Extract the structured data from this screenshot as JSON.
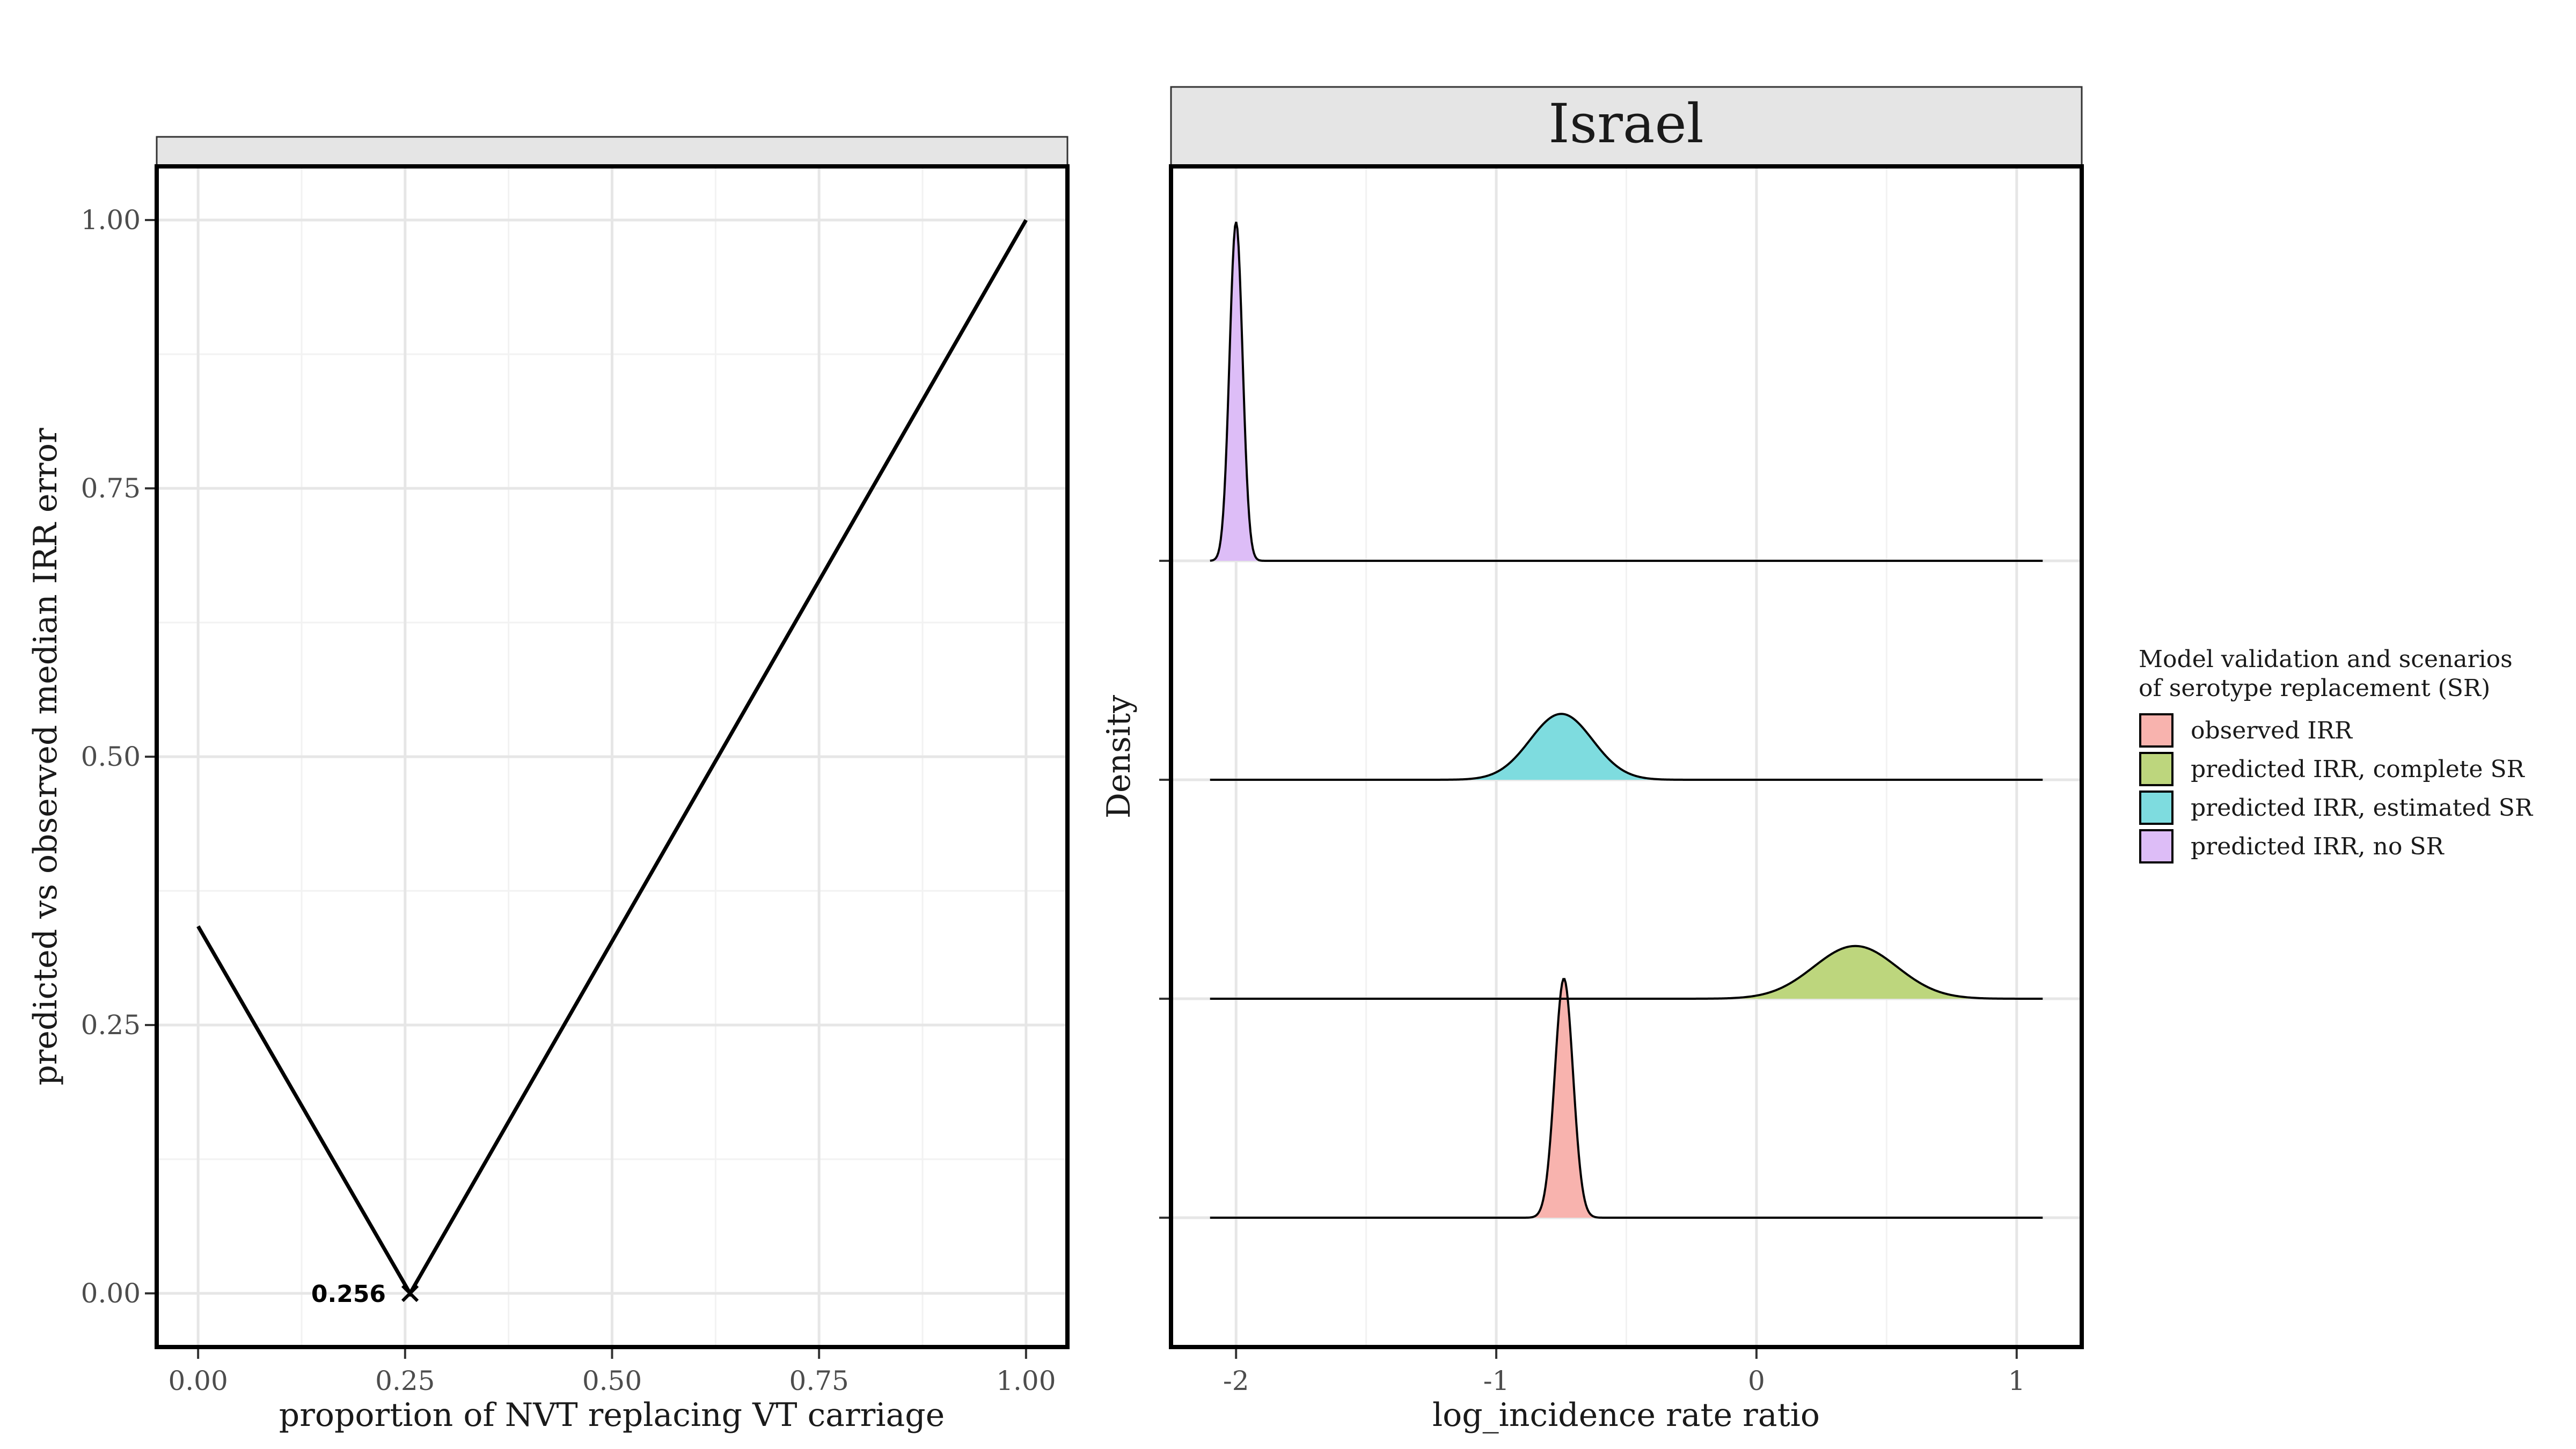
{
  "chart_data": [
    {
      "type": "line",
      "strip_title": "",
      "xlabel": "proportion of NVT replacing VT carriage",
      "ylabel": "predicted vs observed median IRR error",
      "xlim": [
        -0.05,
        1.05
      ],
      "ylim": [
        -0.05,
        1.05
      ],
      "x_ticks": [
        "0.00",
        "0.25",
        "0.50",
        "0.75",
        "1.00"
      ],
      "y_ticks": [
        "0.00",
        "0.25",
        "0.50",
        "0.75",
        "1.00"
      ],
      "grid": true,
      "series": [
        {
          "x": [
            0.0,
            0.256,
            1.0
          ],
          "y": [
            0.342,
            0.0,
            1.0
          ]
        }
      ],
      "annotation": {
        "x": 0.256,
        "y": 0.0,
        "label": "0.256",
        "marker": "x"
      }
    },
    {
      "type": "area",
      "strip_title": "Israel",
      "xlabel": "log_incidence rate ratio",
      "ylabel": "Density",
      "xlim": [
        -2.25,
        1.25
      ],
      "x_ticks": [
        "-2",
        "-1",
        "0",
        "1"
      ],
      "grid": true,
      "baseline_x_range": [
        -2.1,
        1.1
      ],
      "legend": {
        "title_lines": [
          "Model validation and scenarios",
          "of serotype replacement (SR)"
        ],
        "position": "right",
        "entries": [
          {
            "label": "observed IRR",
            "color": "#F8B3AE"
          },
          {
            "label": "predicted IRR, complete SR",
            "color": "#BDD67D"
          },
          {
            "label": "predicted IRR, estimated SR",
            "color": "#7EDCDF"
          },
          {
            "label": "predicted IRR, no SR",
            "color": "#DDBDF7"
          }
        ]
      },
      "series": [
        {
          "name": "observed IRR",
          "color": "#F8B3AE",
          "mean": -0.74,
          "sd": 0.035,
          "relative_height": 1.27
        },
        {
          "name": "predicted IRR, complete SR",
          "color": "#BDD67D",
          "mean": 0.38,
          "sd": 0.16,
          "relative_height": 0.28
        },
        {
          "name": "predicted IRR, estimated SR",
          "color": "#7EDCDF",
          "mean": -0.75,
          "sd": 0.12,
          "relative_height": 0.35
        },
        {
          "name": "predicted IRR, no SR",
          "color": "#DDBDF7",
          "mean": -2.0,
          "sd": 0.025,
          "relative_height": 1.8
        }
      ]
    }
  ]
}
